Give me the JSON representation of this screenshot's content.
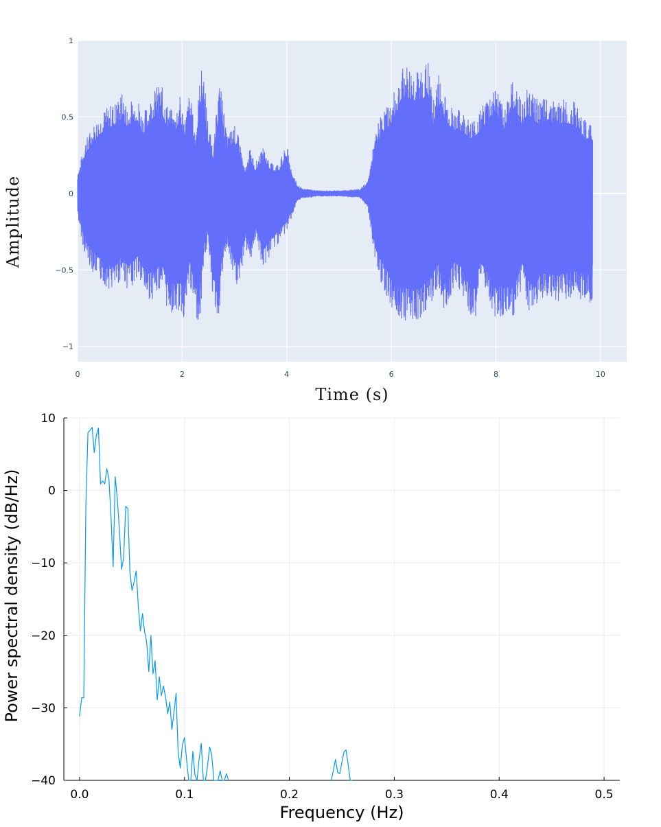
{
  "chart_data": [
    {
      "type": "area",
      "title": "",
      "xlabel": "Time (s)",
      "ylabel": "Amplitude",
      "xlim": [
        0,
        10.5
      ],
      "ylim": [
        -1.1,
        1
      ],
      "xticks": [
        0,
        2,
        4,
        6,
        8,
        10
      ],
      "xtick_labels": [
        "0",
        "2",
        "4",
        "6",
        "8",
        "10"
      ],
      "yticks": [
        1,
        0.5,
        0,
        -0.5,
        -1
      ],
      "ytick_labels": [
        "1",
        "0.5",
        "0",
        "−0.5",
        "−1"
      ],
      "grid": true,
      "colors": {
        "plot_bg": "#e5ecf6",
        "grid": "#ffffff",
        "fill": "#636efa",
        "tick_text": "#2a3f5f"
      },
      "series": [
        {
          "envelope_t": [
            0,
            0.05,
            0.15,
            0.3,
            0.5,
            0.7,
            0.85,
            0.95,
            1.05,
            1.15,
            1.25,
            1.35,
            1.5,
            1.6,
            1.7,
            1.85,
            1.95,
            2.05,
            2.15,
            2.25,
            2.35,
            2.4,
            2.5,
            2.6,
            2.7,
            2.75,
            2.85,
            3.0,
            3.1,
            3.2,
            3.3,
            3.4,
            3.55,
            3.7,
            3.85,
            4.0,
            4.1,
            4.2,
            4.3,
            4.4,
            4.6,
            5.0,
            5.4,
            5.55,
            5.65,
            5.75,
            5.85,
            6.0,
            6.1,
            6.25,
            6.4,
            6.55,
            6.7,
            6.8,
            6.9,
            7.0,
            7.1,
            7.2,
            7.35,
            7.5,
            7.6,
            7.7,
            7.85,
            8.0,
            8.15,
            8.25,
            8.35,
            8.5,
            8.6,
            8.75,
            8.85,
            9.0,
            9.15,
            9.3,
            9.5,
            9.7,
            9.85
          ],
          "envelope_upper": [
            0.12,
            0.2,
            0.35,
            0.45,
            0.55,
            0.6,
            0.66,
            0.58,
            0.62,
            0.64,
            0.52,
            0.6,
            0.7,
            0.72,
            0.6,
            0.52,
            0.65,
            0.5,
            0.68,
            0.4,
            0.8,
            0.84,
            0.45,
            0.3,
            0.72,
            0.7,
            0.38,
            0.45,
            0.35,
            0.15,
            0.3,
            0.2,
            0.3,
            0.2,
            0.2,
            0.32,
            0.15,
            0.06,
            0.03,
            0.03,
            0.02,
            0.02,
            0.03,
            0.08,
            0.3,
            0.47,
            0.55,
            0.6,
            0.72,
            0.85,
            0.82,
            0.8,
            0.88,
            0.6,
            0.8,
            0.68,
            0.6,
            0.55,
            0.55,
            0.48,
            0.5,
            0.55,
            0.65,
            0.72,
            0.55,
            0.7,
            0.75,
            0.6,
            0.7,
            0.63,
            0.6,
            0.65,
            0.6,
            0.62,
            0.6,
            0.48,
            0.47
          ],
          "envelope_lower": [
            -0.14,
            -0.25,
            -0.42,
            -0.52,
            -0.6,
            -0.65,
            -0.55,
            -0.63,
            -0.6,
            -0.55,
            -0.65,
            -0.7,
            -0.68,
            -0.6,
            -0.75,
            -0.8,
            -0.78,
            -0.83,
            -0.6,
            -0.83,
            -0.83,
            -0.5,
            -0.3,
            -0.75,
            -0.83,
            -0.6,
            -0.35,
            -0.6,
            -0.62,
            -0.35,
            -0.45,
            -0.3,
            -0.5,
            -0.4,
            -0.32,
            -0.25,
            -0.15,
            -0.06,
            -0.03,
            -0.03,
            -0.02,
            -0.02,
            -0.03,
            -0.1,
            -0.35,
            -0.55,
            -0.62,
            -0.75,
            -0.8,
            -0.83,
            -0.83,
            -0.83,
            -0.75,
            -0.7,
            -0.6,
            -0.8,
            -0.72,
            -0.6,
            -0.65,
            -0.83,
            -0.83,
            -0.6,
            -0.7,
            -0.83,
            -0.8,
            -0.83,
            -0.83,
            -0.6,
            -0.75,
            -0.83,
            -0.7,
            -0.7,
            -0.72,
            -0.7,
            -0.68,
            -0.7,
            -0.72
          ]
        }
      ]
    },
    {
      "type": "line",
      "title": "",
      "xlabel": "Frequency (Hz)",
      "ylabel": "Power spectral density (dB/Hz)",
      "xlim": [
        -0.015,
        0.515
      ],
      "ylim": [
        -40,
        10
      ],
      "xticks": [
        0,
        0.1,
        0.2,
        0.3,
        0.4,
        0.5
      ],
      "xtick_labels": [
        "0.0",
        "0.1",
        "0.2",
        "0.3",
        "0.4",
        "0.5"
      ],
      "yticks": [
        10,
        0,
        -10,
        -20,
        -30,
        -40
      ],
      "ytick_labels": [
        "10",
        "0",
        "−10",
        "−20",
        "−30",
        "−40"
      ],
      "grid": true,
      "colors": {
        "line": "#009af9",
        "grid": "#ececec",
        "axis": "#000000"
      },
      "series": [
        {
          "x": [
            0.0,
            0.002,
            0.004,
            0.006,
            0.008,
            0.01,
            0.012,
            0.014,
            0.016,
            0.018,
            0.02,
            0.022,
            0.024,
            0.026,
            0.028,
            0.03,
            0.032,
            0.034,
            0.036,
            0.038,
            0.04,
            0.042,
            0.044,
            0.046,
            0.048,
            0.05,
            0.052,
            0.054,
            0.056,
            0.058,
            0.06,
            0.062,
            0.064,
            0.066,
            0.068,
            0.07,
            0.072,
            0.074,
            0.076,
            0.078,
            0.08,
            0.082,
            0.084,
            0.086,
            0.088,
            0.09,
            0.092,
            0.094,
            0.096,
            0.098,
            0.1,
            0.102,
            0.104,
            0.106,
            0.108,
            0.11,
            0.112,
            0.114,
            0.116,
            0.118,
            0.12,
            0.122,
            0.124,
            0.126,
            0.128,
            0.13,
            0.132,
            0.134,
            0.136,
            0.138,
            0.14,
            0.142
          ],
          "y": [
            -31.2,
            -28.6,
            -28.6,
            -2.0,
            8.0,
            8.3,
            8.7,
            5.2,
            7.6,
            8.6,
            0.9,
            1.3,
            0.9,
            3.0,
            1.6,
            -3.8,
            -10.5,
            1.9,
            -1.2,
            -5.5,
            -10.9,
            -9.3,
            -2.2,
            -2.5,
            -11.2,
            -13.8,
            -12.6,
            -11.1,
            -16.0,
            -19.4,
            -17.0,
            -19.5,
            -21.0,
            -25.0,
            -20.0,
            -25.3,
            -23.5,
            -28.9,
            -25.7,
            -28.3,
            -27.0,
            -28.5,
            -30.8,
            -29.2,
            -33.0,
            -30.6,
            -28.0,
            -36.2,
            -38.3,
            -35.1,
            -34.1,
            -37.1,
            -40.0,
            -40.0,
            -36.0,
            -39.3,
            -40.0,
            -37.0,
            -34.9,
            -40.0,
            -40.0,
            -38.0,
            -35.4,
            -36.5,
            -40.0,
            -40.0,
            -40.0,
            -38.7,
            -40.0,
            -40.0,
            -39.1,
            -40.0
          ]
        },
        {
          "x": [
            0.24,
            0.244,
            0.246,
            0.248,
            0.25,
            0.252,
            0.254,
            0.256,
            0.258,
            0.26
          ],
          "y": [
            -40.0,
            -37.1,
            -38.9,
            -39.1,
            -37.6,
            -36.1,
            -35.8,
            -37.8,
            -40.0,
            -40.0
          ]
        }
      ]
    }
  ]
}
